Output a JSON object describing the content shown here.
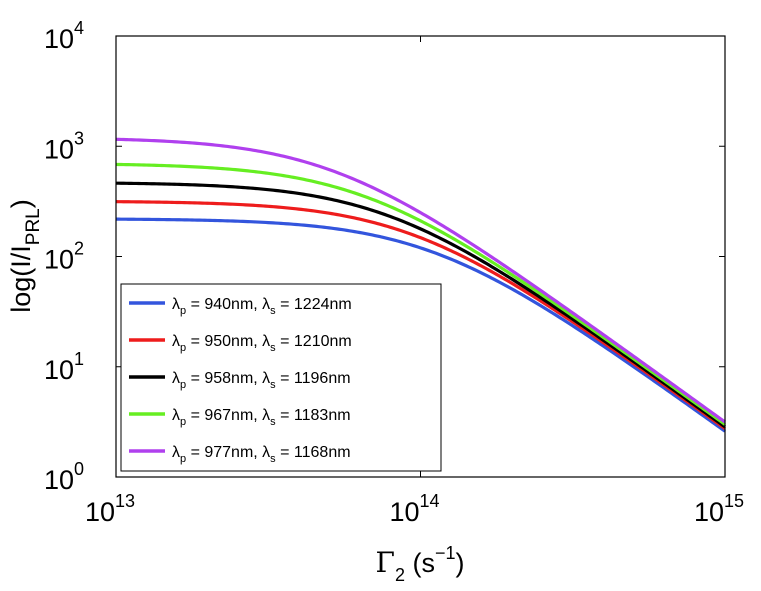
{
  "chart_data": {
    "type": "line",
    "x_scale": "log",
    "y_scale": "log",
    "xlim": [
      10000000000000.0,
      1000000000000000.0
    ],
    "ylim": [
      1,
      10000
    ],
    "x_ticks": [
      {
        "value": 10000000000000.0,
        "base": "10",
        "exp": "13"
      },
      {
        "value": 100000000000000.0,
        "base": "10",
        "exp": "14"
      },
      {
        "value": 1000000000000000.0,
        "base": "10",
        "exp": "15"
      }
    ],
    "y_ticks": [
      {
        "value": 1,
        "base": "10",
        "exp": "0"
      },
      {
        "value": 10,
        "base": "10",
        "exp": "1"
      },
      {
        "value": 100,
        "base": "10",
        "exp": "2"
      },
      {
        "value": 1000,
        "base": "10",
        "exp": "3"
      },
      {
        "value": 10000,
        "base": "10",
        "exp": "4"
      }
    ],
    "xlabel": {
      "symbol": "Γ",
      "sub": "2",
      "unit_pre": "(s",
      "unit_sup": "−1",
      "unit_post": ")"
    },
    "ylabel": {
      "pre": "log(I/I",
      "sub": "PRL",
      "post": ")"
    },
    "legend_location": "bottom-left",
    "series": [
      {
        "lp": "940nm",
        "ls": "1224nm",
        "color": "#3355dd",
        "plateau": 220,
        "end": 2.6
      },
      {
        "lp": "950nm",
        "ls": "1210nm",
        "color": "#ee1c1c",
        "plateau": 318,
        "end": 2.75
      },
      {
        "lp": "958nm",
        "ls": "1196nm",
        "color": "#000000",
        "plateau": 470,
        "end": 2.85
      },
      {
        "lp": "967nm",
        "ls": "1183nm",
        "color": "#66ee22",
        "plateau": 700,
        "end": 3.0
      },
      {
        "lp": "977nm",
        "ls": "1168nm",
        "color": "#b040ee",
        "plateau": 1200,
        "end": 3.15
      }
    ],
    "legend_template": {
      "lambda": "λ",
      "p": "p",
      "s": "s",
      "eq": " = ",
      "sep": ", "
    }
  }
}
